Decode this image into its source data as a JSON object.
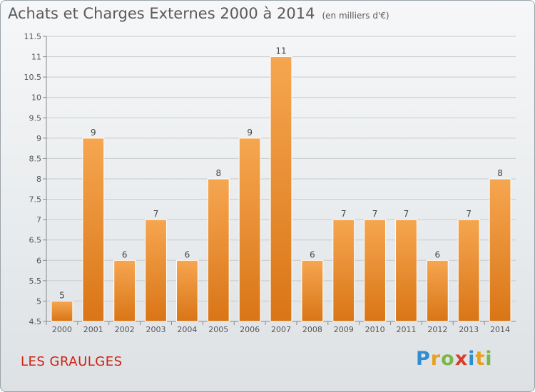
{
  "title": "Achats et Charges Externes 2000 à 2014",
  "unit": "(en milliers d'€)",
  "commune": "LES GRAULGES",
  "logo": {
    "text": "Proxiti",
    "letters": [
      {
        "ch": "P",
        "color": "#2f8ecf"
      },
      {
        "ch": "r",
        "color": "#e8a020"
      },
      {
        "ch": "o",
        "color": "#7ab648"
      },
      {
        "ch": "x",
        "color": "#d93b2b"
      },
      {
        "ch": "i",
        "color": "#2f8ecf"
      },
      {
        "ch": "t",
        "color": "#e8a020"
      },
      {
        "ch": "i",
        "color": "#7ab648"
      }
    ]
  },
  "chart_data": {
    "type": "bar",
    "categories": [
      "2000",
      "2001",
      "2002",
      "2003",
      "2004",
      "2005",
      "2006",
      "2007",
      "2008",
      "2009",
      "2010",
      "2011",
      "2012",
      "2013",
      "2014"
    ],
    "values": [
      5,
      9,
      6,
      7,
      6,
      8,
      9,
      11,
      6,
      7,
      7,
      7,
      6,
      7,
      8
    ],
    "ylim": [
      4.5,
      11.5
    ],
    "yticks": [
      4.5,
      5,
      5.5,
      6,
      6.5,
      7,
      7.5,
      8,
      8.5,
      9,
      9.5,
      10,
      10.5,
      11,
      11.5
    ],
    "grid": true,
    "colors": {
      "bar_light": "#f6a650",
      "bar_dark": "#d97516",
      "grid": "#c9c9c9"
    }
  }
}
